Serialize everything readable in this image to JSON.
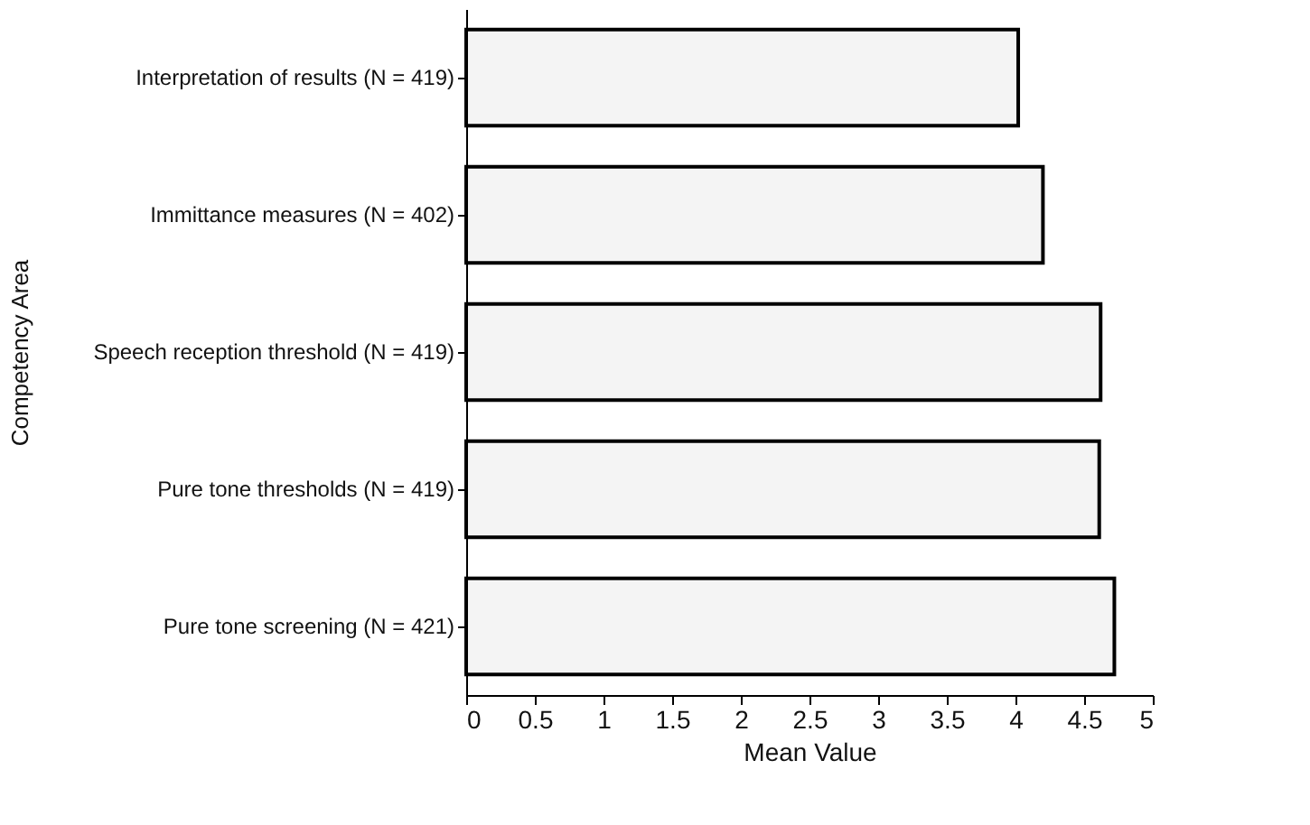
{
  "chart_data": {
    "type": "bar",
    "orientation": "horizontal",
    "xlabel": "Mean Value",
    "ylabel": "Competency Area",
    "categories": [
      "Interpretation of results (N = 419)",
      "Immittance measures (N = 402)",
      "Speech reception threshold (N = 419)",
      "Pure tone thresholds (N = 419)",
      "Pure tone screening (N = 421)"
    ],
    "values": [
      4.02,
      4.2,
      4.62,
      4.61,
      4.72
    ],
    "color": "#f4f4f4",
    "xlim": [
      0,
      5
    ],
    "xticks": [
      0,
      0.5,
      1,
      1.5,
      2,
      2.5,
      3,
      3.5,
      4,
      4.5,
      5
    ],
    "grid": false
  }
}
